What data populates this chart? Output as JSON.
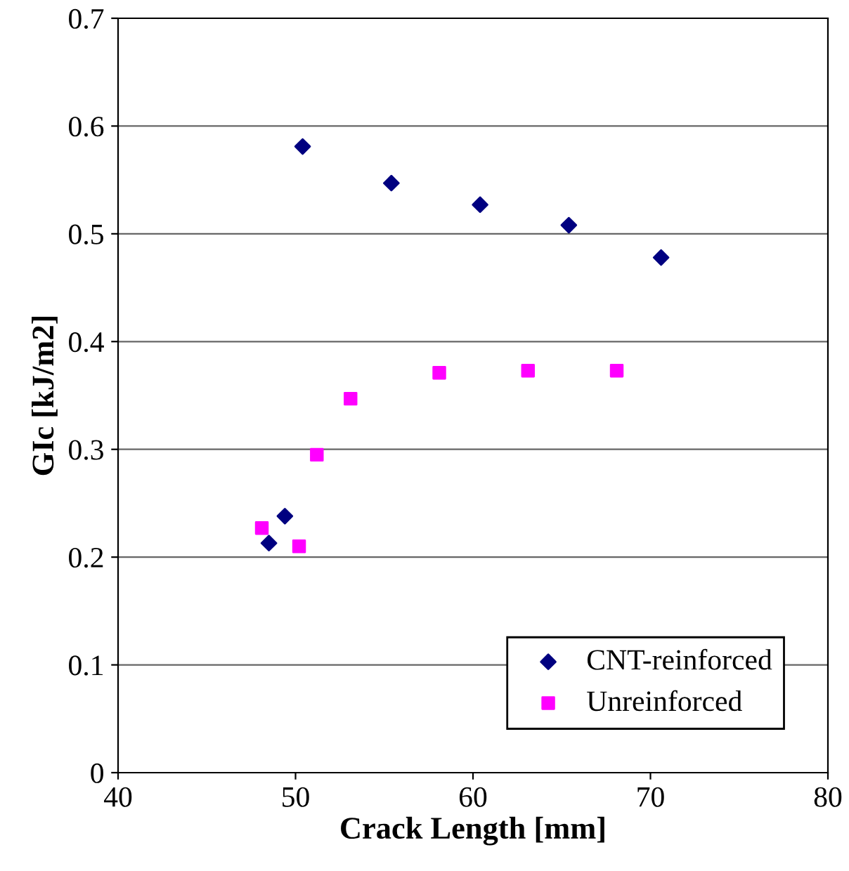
{
  "chart_data": {
    "type": "scatter",
    "xlabel": "Crack Length [mm]",
    "ylabel": "GIc [kJ/m2]",
    "xlim": [
      40,
      80
    ],
    "xticks": [
      40,
      50,
      60,
      70,
      80
    ],
    "ylim": [
      0,
      0.7
    ],
    "yticks": [
      0,
      0.1,
      0.2,
      0.3,
      0.4,
      0.5,
      0.6,
      0.7
    ],
    "grid": "y",
    "legend": "bottom right",
    "series": [
      {
        "name": "CNT-reinforced",
        "color": "#000080",
        "marker": "diamond",
        "x": [
          48.5,
          49.4,
          50.4,
          55.4,
          60.4,
          65.4,
          70.6
        ],
        "values": [
          0.213,
          0.238,
          0.581,
          0.547,
          0.527,
          0.508,
          0.478
        ]
      },
      {
        "name": "Unreinforced",
        "color": "#ff00ff",
        "marker": "square",
        "x": [
          48.1,
          50.2,
          51.2,
          53.1,
          58.1,
          63.1,
          68.1
        ],
        "values": [
          0.227,
          0.21,
          0.295,
          0.347,
          0.371,
          0.373,
          0.373
        ]
      }
    ]
  }
}
